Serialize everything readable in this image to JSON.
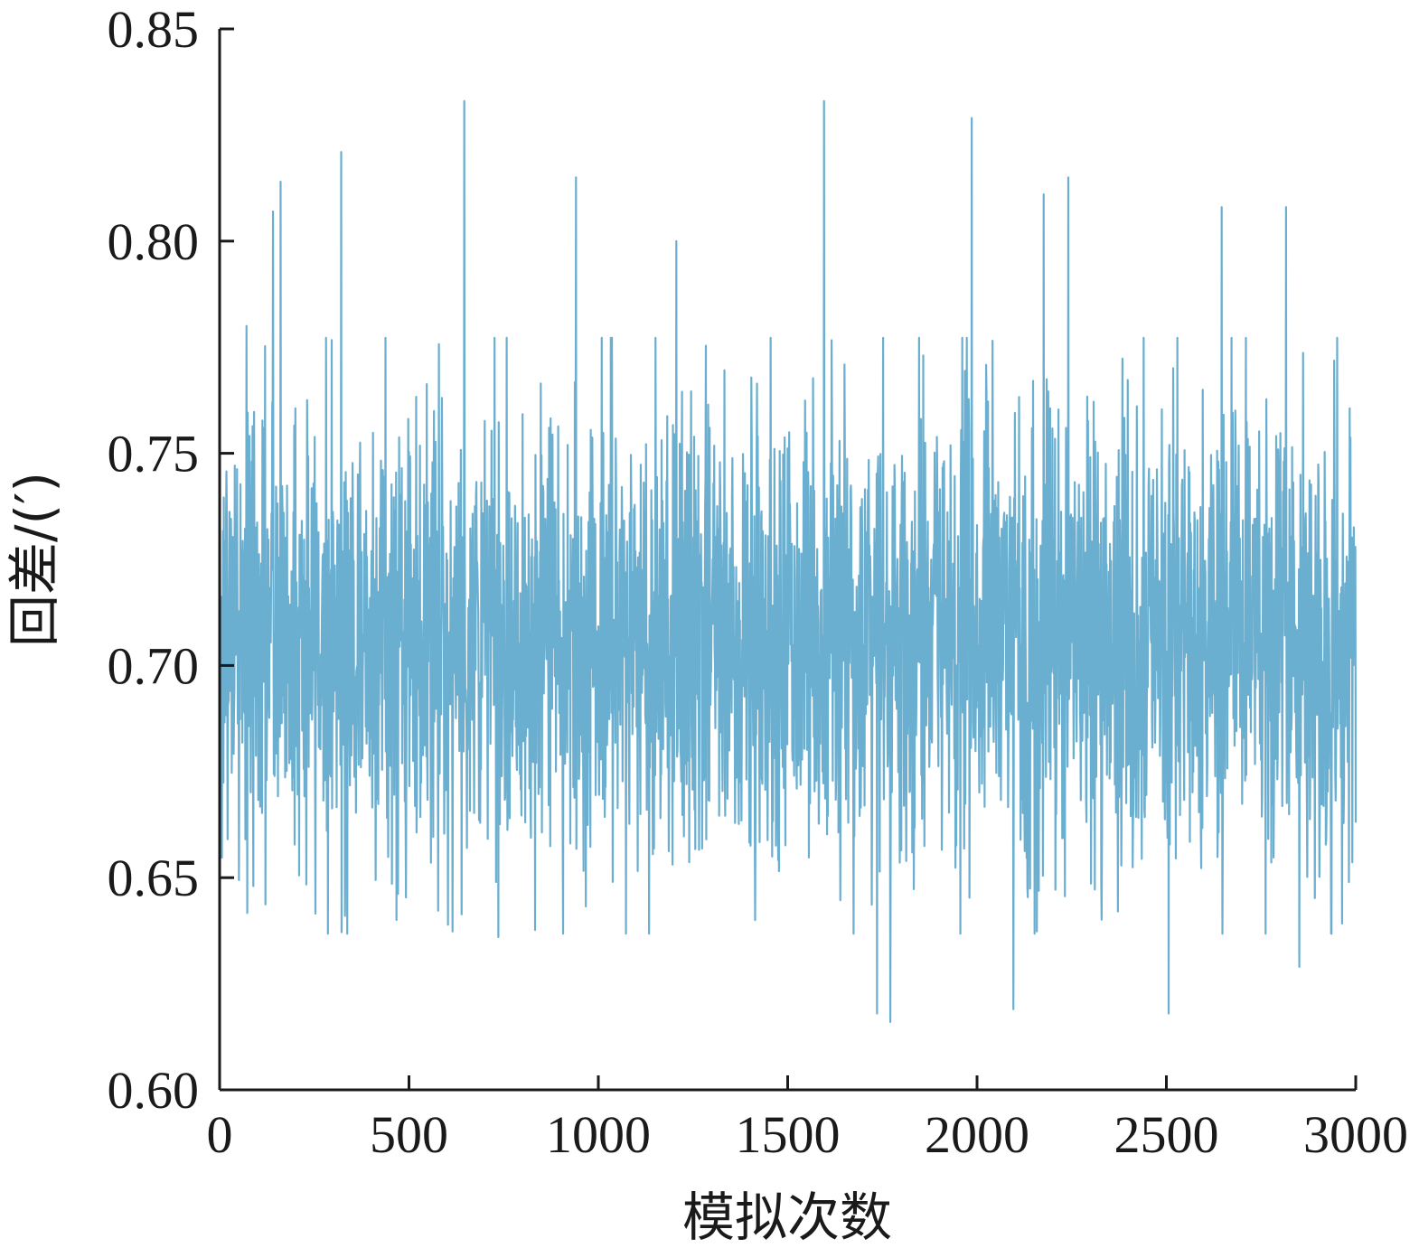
{
  "chart_data": {
    "type": "line",
    "title": "",
    "xlabel": "模拟次数",
    "ylabel": "回差/(′)",
    "xlim": [
      0,
      3000
    ],
    "ylim": [
      0.6,
      0.85
    ],
    "x_ticks": [
      "0",
      "500",
      "1000",
      "1500",
      "2000",
      "2500",
      "3000"
    ],
    "y_ticks": [
      "0.60",
      "0.65",
      "0.70",
      "0.75",
      "0.80",
      "0.85"
    ],
    "grid": false,
    "legend": "none",
    "series": [
      {
        "color": "#6aaed0",
        "n_points": 3000,
        "mean": 0.707,
        "std": 0.027,
        "peaks": [
          {
            "x": 70,
            "y": 0.78
          },
          {
            "x": 140,
            "y": 0.807
          },
          {
            "x": 160,
            "y": 0.814
          },
          {
            "x": 320,
            "y": 0.821
          },
          {
            "x": 645,
            "y": 0.833
          },
          {
            "x": 940,
            "y": 0.815
          },
          {
            "x": 1205,
            "y": 0.8
          },
          {
            "x": 1595,
            "y": 0.833
          },
          {
            "x": 1985,
            "y": 0.829
          },
          {
            "x": 2175,
            "y": 0.811
          },
          {
            "x": 2240,
            "y": 0.815
          },
          {
            "x": 2645,
            "y": 0.808
          },
          {
            "x": 2815,
            "y": 0.808
          }
        ],
        "troughs": [
          {
            "x": 330,
            "y": 0.641
          },
          {
            "x": 735,
            "y": 0.636
          },
          {
            "x": 1735,
            "y": 0.618
          },
          {
            "x": 1770,
            "y": 0.616
          },
          {
            "x": 2095,
            "y": 0.619
          },
          {
            "x": 2505,
            "y": 0.618
          },
          {
            "x": 2850,
            "y": 0.629
          }
        ]
      }
    ]
  }
}
